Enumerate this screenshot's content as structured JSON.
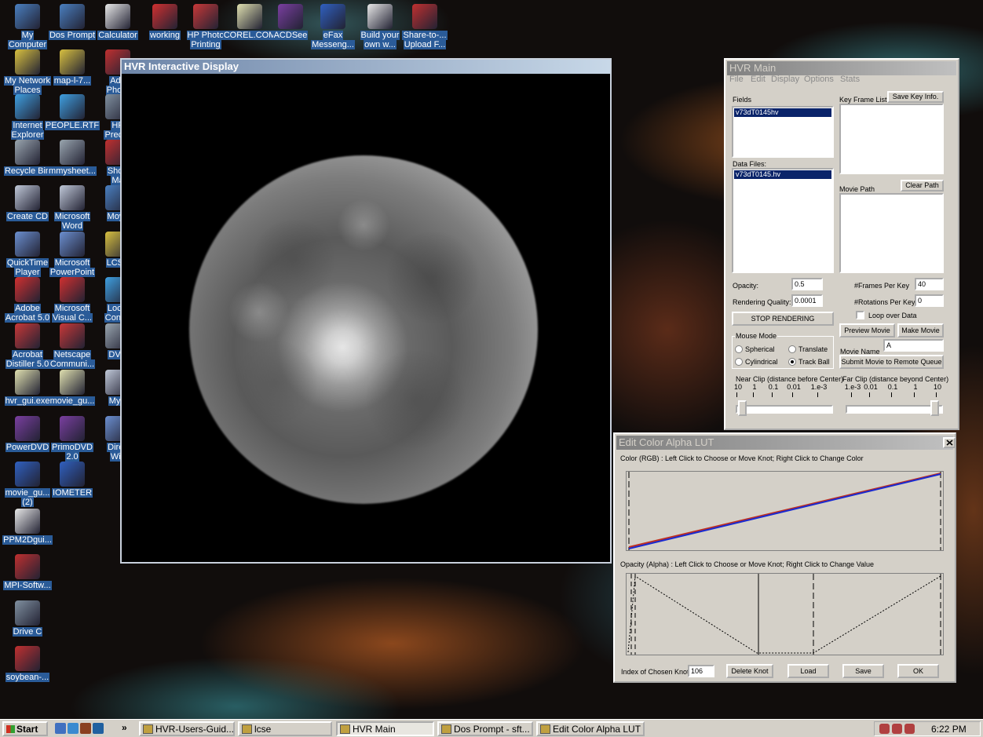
{
  "desktop": {
    "icons": [
      {
        "label": [
          "My",
          "Computer"
        ]
      },
      {
        "label": [
          "My Network",
          "Places"
        ]
      },
      {
        "label": [
          "Internet",
          "Explorer"
        ]
      },
      {
        "label": [
          "Recycle Bin"
        ]
      },
      {
        "label": [
          "Create CD"
        ]
      },
      {
        "label": [
          "QuickTime",
          "Player"
        ]
      },
      {
        "label": [
          "Adobe",
          "Acrobat 5.0"
        ]
      },
      {
        "label": [
          "Acrobat",
          "Distiller 5.0"
        ]
      },
      {
        "label": [
          "hvr_gui.exe"
        ]
      },
      {
        "label": [
          "PowerDVD"
        ]
      },
      {
        "label": [
          "movie_gu...",
          "(2)"
        ]
      },
      {
        "label": [
          "PPM2Dgui..."
        ]
      },
      {
        "label": [
          "MPI-Softw..."
        ]
      },
      {
        "label": [
          "Drive C"
        ]
      },
      {
        "label": [
          "soybean-..."
        ]
      },
      {
        "label": [
          "Dos Prompt"
        ]
      },
      {
        "label": [
          "map-l-7..."
        ]
      },
      {
        "label": [
          "PEOPLE.RTF"
        ]
      },
      {
        "label": [
          "mmysheet..."
        ]
      },
      {
        "label": [
          "Microsoft",
          "Word"
        ]
      },
      {
        "label": [
          "Microsoft",
          "PowerPoint"
        ]
      },
      {
        "label": [
          "Microsoft",
          "Visual C..."
        ]
      },
      {
        "label": [
          "Netscape",
          "Communi..."
        ]
      },
      {
        "label": [
          "movie_gu..."
        ]
      },
      {
        "label": [
          "PrimoDVD",
          "2.0"
        ]
      },
      {
        "label": [
          "IOMETER"
        ]
      },
      {
        "label": [
          "Calculator"
        ]
      },
      {
        "label": [
          "Ado",
          "Photo"
        ]
      },
      {
        "label": [
          "HP",
          "Precisi"
        ]
      },
      {
        "label": [
          "Short",
          "Ma"
        ]
      },
      {
        "label": [
          "Moya"
        ]
      },
      {
        "label": [
          "LCSE"
        ]
      },
      {
        "label": [
          "Local",
          "Conne"
        ]
      },
      {
        "label": [
          "DVD"
        ]
      },
      {
        "label": [
          "MyD"
        ]
      },
      {
        "label": [
          "Direc",
          "Wiz"
        ]
      },
      {
        "label": [
          "working"
        ]
      },
      {
        "label": [
          "HP Photo",
          "Printing"
        ]
      },
      {
        "label": [
          "COREL.COM"
        ]
      },
      {
        "label": [
          "ACDSee"
        ]
      },
      {
        "label": [
          "eFax",
          "Messeng..."
        ]
      },
      {
        "label": [
          "Build your",
          "own w..."
        ]
      },
      {
        "label": [
          "Share-to-...",
          "Upload F..."
        ]
      }
    ]
  },
  "display_window": {
    "title": "HVR Interactive Display"
  },
  "main_window": {
    "title": "HVR Main",
    "menu": [
      "File",
      "Edit",
      "Display",
      "Options",
      "Stats"
    ],
    "fields_label": "Fields",
    "fields": [
      "v73dT0145hv"
    ],
    "data_files_label": "Data Files:",
    "data_files": [
      "v73dT0145.hv"
    ],
    "key_frame_label": "Key Frame List",
    "save_key_button": "Save Key Info.",
    "movie_path_label": "Movie Path",
    "clear_path_button": "Clear Path",
    "opacity_label": "Opacity:",
    "opacity_value": "0.5",
    "quality_label": "Rendering Quality:",
    "quality_value": "0.0001",
    "frames_label": "#Frames Per Key",
    "frames_value": "40",
    "rotations_label": "#Rotations Per Key",
    "rotations_value": "0",
    "loop_label": "Loop over Data",
    "stop_button": "STOP RENDERING",
    "preview_button": "Preview Movie",
    "make_button": "Make Movie",
    "mouse_mode_label": "Mouse Mode",
    "modes": [
      "Spherical",
      "Translate",
      "Cylindrical",
      "Track Ball"
    ],
    "movie_name_label": "Movie Name",
    "movie_name_value": "A",
    "submit_button": "Submit Movie to Remote Queue",
    "near_clip_label": "Near Clip (distance before Center)",
    "near_ticks": [
      "10",
      "1",
      "0.1",
      "0.01",
      "1.e-3"
    ],
    "far_clip_label": "Far Clip (distance beyond Center)",
    "far_ticks": [
      "1.e-3",
      "0.01",
      "0.1",
      "1",
      "10"
    ]
  },
  "lut_window": {
    "title": "Edit Color Alpha LUT",
    "color_label": "Color (RGB) : Left Click to Choose or Move Knot;  Right Click to Change Color",
    "opacity_label": "Opacity (Alpha) : Left Click to Choose or Move Knot; Right Click to Change Value",
    "knot_label": "Index of Chosen Knot",
    "knot_value": "106",
    "delete_button": "Delete Knot",
    "load_button": "Load",
    "save_button": "Save",
    "ok_button": "OK"
  },
  "taskbar": {
    "start": "Start",
    "more": "»",
    "tasks": [
      "HVR-Users-Guid...",
      "lcse",
      "HVR Main",
      "Dos Prompt - sft...",
      "Edit Color Alpha LUT"
    ],
    "clock": "6:22 PM"
  }
}
